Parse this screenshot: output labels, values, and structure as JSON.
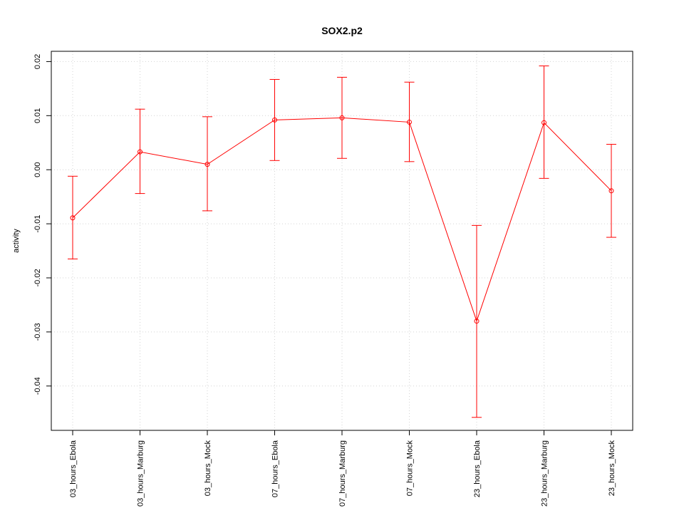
{
  "chart_data": {
    "type": "line",
    "title": "SOX2.p2",
    "xlabel": "",
    "ylabel": "activity",
    "categories": [
      "03_hours_Ebola",
      "03_hours_Marburg",
      "03_hours_Mock",
      "07_hours_Ebola",
      "07_hours_Marburg",
      "07_hours_Mock",
      "23_hours_Ebola",
      "23_hours_Marburg",
      "23_hours_Mock"
    ],
    "values": [
      -0.0089,
      0.0033,
      0.001,
      0.0092,
      0.0096,
      0.0088,
      -0.028,
      0.0087,
      -0.0039
    ],
    "error_low": [
      -0.0165,
      -0.0044,
      -0.0076,
      0.0017,
      0.0021,
      0.0015,
      -0.0458,
      -0.0016,
      -0.0125
    ],
    "error_high": [
      -0.0012,
      0.0112,
      0.0098,
      0.0167,
      0.0171,
      0.0162,
      -0.0103,
      0.0192,
      0.0047
    ],
    "yticks": [
      -0.04,
      -0.03,
      -0.02,
      -0.01,
      0.0,
      0.01,
      0.02
    ],
    "ytick_labels": [
      "-0.04",
      "-0.03",
      "-0.02",
      "-0.01",
      "0.00",
      "0.01",
      "0.02"
    ],
    "ylim": [
      -0.0482,
      0.0219
    ],
    "grid": true,
    "color": "#ff0000"
  }
}
